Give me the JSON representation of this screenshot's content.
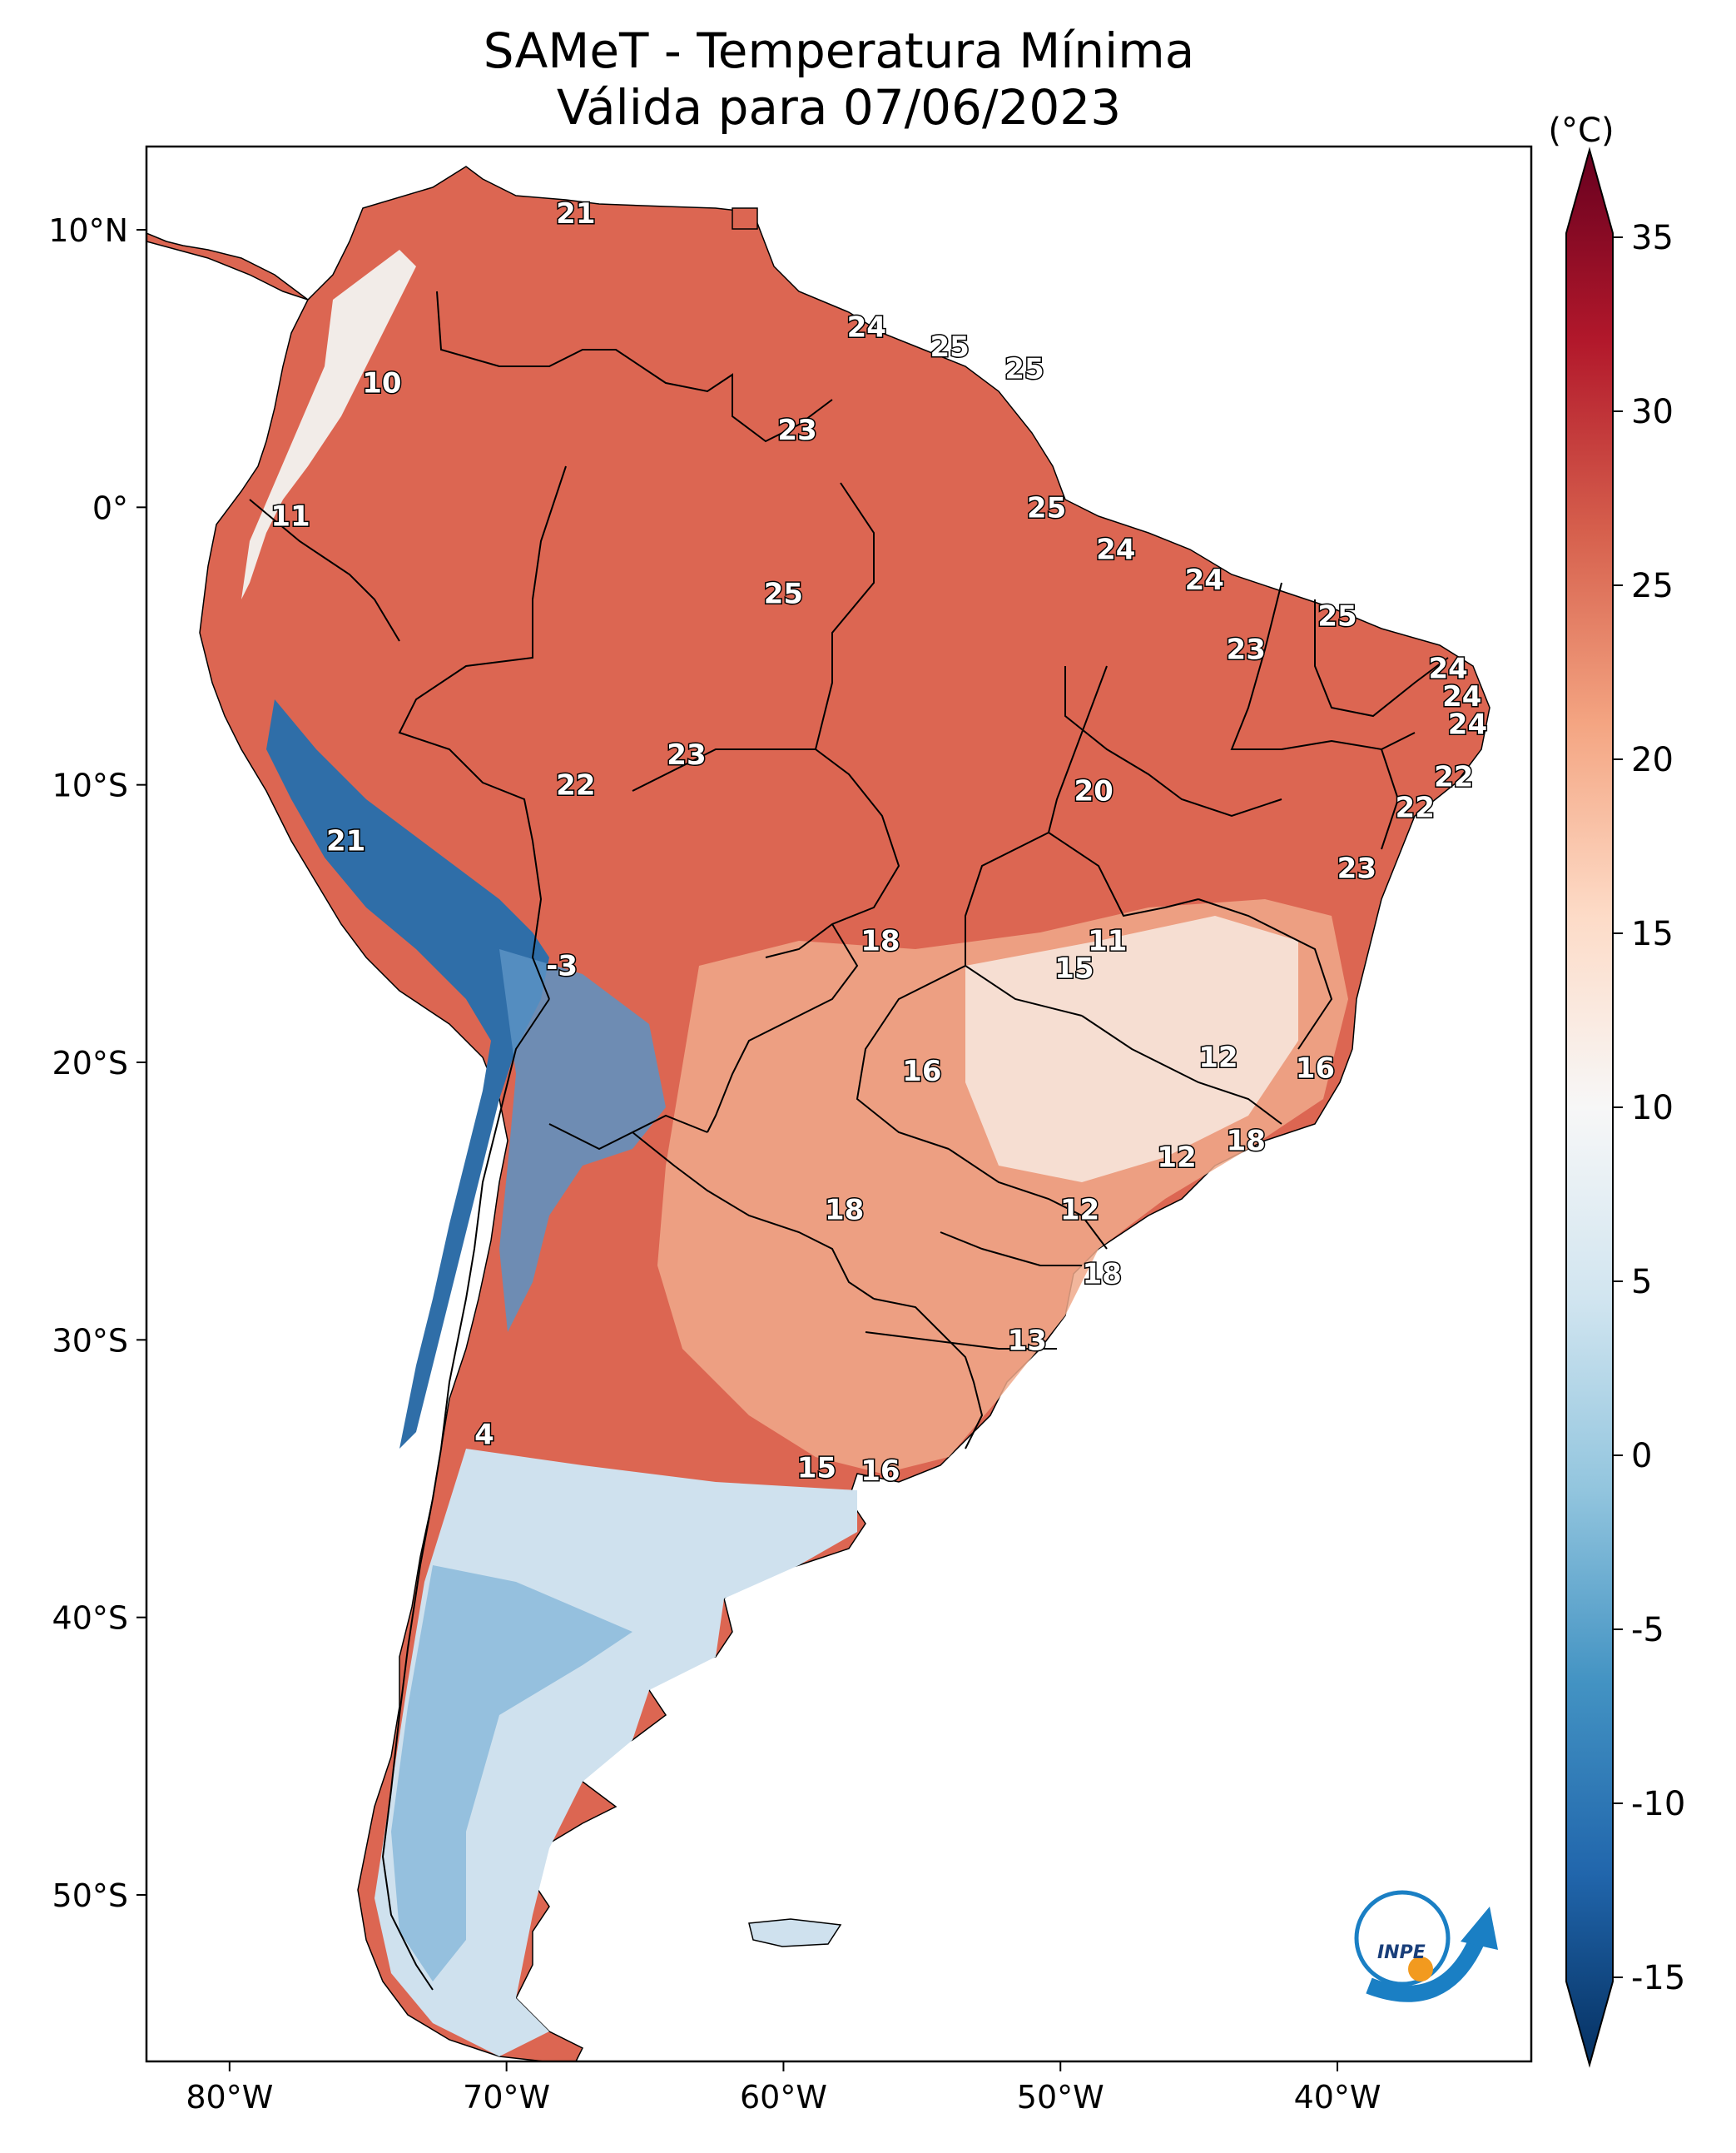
{
  "title": "SAMeT - Temperatura Mínima",
  "subtitle": "Válida para 07/06/2023",
  "map": {
    "lon_range": [
      -83,
      -33
    ],
    "lat_range": [
      -56,
      13
    ],
    "lon_ticks": [
      "80°W",
      "70°W",
      "60°W",
      "50°W",
      "40°W"
    ],
    "lat_ticks": [
      "10°N",
      "0°",
      "10°S",
      "20°S",
      "30°S",
      "40°S",
      "50°S"
    ],
    "ocean_color": "#ffffff",
    "land_colors": {
      "warm": "#d6574a",
      "mild": "#f3c2aa",
      "neutral": "#f4f2f0",
      "cold": "#2f6ea8"
    }
  },
  "colorbar": {
    "unit_label": "(°C)",
    "ticks": [
      "35",
      "30",
      "25",
      "20",
      "15",
      "10",
      "5",
      "0",
      "-5",
      "-10",
      "-15"
    ],
    "range": [
      -15,
      35
    ],
    "colors_top_to_bottom": [
      "#67001f",
      "#b2182b",
      "#d6604d",
      "#f4a582",
      "#fddbc7",
      "#f7f7f7",
      "#d1e5f0",
      "#92c5de",
      "#4393c3",
      "#2166ac",
      "#053061"
    ]
  },
  "station_labels": [
    {
      "text": "21",
      "lon": -67.5,
      "lat": 10.6
    },
    {
      "text": "10",
      "lon": -74.5,
      "lat": 4.5
    },
    {
      "text": "24",
      "lon": -57.0,
      "lat": 6.5
    },
    {
      "text": "25",
      "lon": -54.0,
      "lat": 5.8
    },
    {
      "text": "25",
      "lon": -51.3,
      "lat": 5.0
    },
    {
      "text": "23",
      "lon": -59.5,
      "lat": 2.8
    },
    {
      "text": "11",
      "lon": -77.8,
      "lat": -0.3
    },
    {
      "text": "25",
      "lon": -50.5,
      "lat": 0.0
    },
    {
      "text": "24",
      "lon": -48.0,
      "lat": -1.5
    },
    {
      "text": "24",
      "lon": -44.8,
      "lat": -2.6
    },
    {
      "text": "25",
      "lon": -60.0,
      "lat": -3.1
    },
    {
      "text": "25",
      "lon": -40.0,
      "lat": -3.9
    },
    {
      "text": "23",
      "lon": -43.3,
      "lat": -5.1
    },
    {
      "text": "24",
      "lon": -36.0,
      "lat": -5.8
    },
    {
      "text": "24",
      "lon": -35.5,
      "lat": -6.8
    },
    {
      "text": "24",
      "lon": -35.3,
      "lat": -7.8
    },
    {
      "text": "23",
      "lon": -63.5,
      "lat": -8.9
    },
    {
      "text": "22",
      "lon": -67.5,
      "lat": -10.0
    },
    {
      "text": "22",
      "lon": -35.8,
      "lat": -9.7
    },
    {
      "text": "20",
      "lon": -48.8,
      "lat": -10.2
    },
    {
      "text": "22",
      "lon": -37.2,
      "lat": -10.8
    },
    {
      "text": "21",
      "lon": -75.8,
      "lat": -12.0
    },
    {
      "text": "23",
      "lon": -39.3,
      "lat": -13.0
    },
    {
      "text": "18",
      "lon": -56.5,
      "lat": -15.6
    },
    {
      "text": "11",
      "lon": -48.3,
      "lat": -15.6
    },
    {
      "text": "15",
      "lon": -49.5,
      "lat": -16.6
    },
    {
      "text": "-3",
      "lon": -68.0,
      "lat": -16.5
    },
    {
      "text": "12",
      "lon": -44.3,
      "lat": -19.8
    },
    {
      "text": "16",
      "lon": -55.0,
      "lat": -20.3
    },
    {
      "text": "16",
      "lon": -40.8,
      "lat": -20.2
    },
    {
      "text": "18",
      "lon": -43.3,
      "lat": -22.8
    },
    {
      "text": "12",
      "lon": -45.8,
      "lat": -23.4
    },
    {
      "text": "18",
      "lon": -57.8,
      "lat": -25.3
    },
    {
      "text": "12",
      "lon": -49.3,
      "lat": -25.3
    },
    {
      "text": "18",
      "lon": -48.5,
      "lat": -27.6
    },
    {
      "text": "13",
      "lon": -51.2,
      "lat": -30.0
    },
    {
      "text": "4",
      "lon": -70.8,
      "lat": -33.4
    },
    {
      "text": "15",
      "lon": -58.8,
      "lat": -34.6
    },
    {
      "text": "16",
      "lon": -56.5,
      "lat": -34.7
    }
  ],
  "logo": {
    "text": "INPE",
    "colors": [
      "#1a7fc4",
      "#f29a1f"
    ]
  }
}
